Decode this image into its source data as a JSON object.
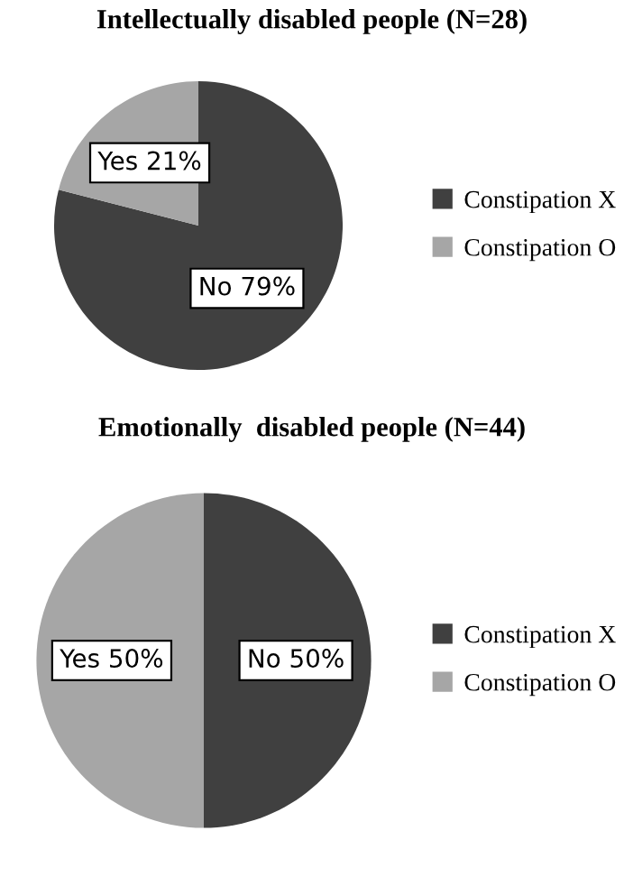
{
  "chart_data": [
    {
      "type": "pie",
      "title": "Intellectually disabled people (N=28)",
      "categories": [
        "Constipation X",
        "Constipation O"
      ],
      "values": [
        79,
        21
      ],
      "colors": [
        "#404040",
        "#a6a6a6"
      ],
      "value_labels": [
        "No 79%",
        "Yes 21%"
      ],
      "legend": "right"
    },
    {
      "type": "pie",
      "title": "Emotionally  disabled people (N=44)",
      "categories": [
        "Constipation X",
        "Constipation O"
      ],
      "values": [
        50,
        50
      ],
      "colors": [
        "#404040",
        "#a6a6a6"
      ],
      "value_labels": [
        "No 50%",
        "Yes 50%"
      ],
      "legend": "right"
    }
  ]
}
